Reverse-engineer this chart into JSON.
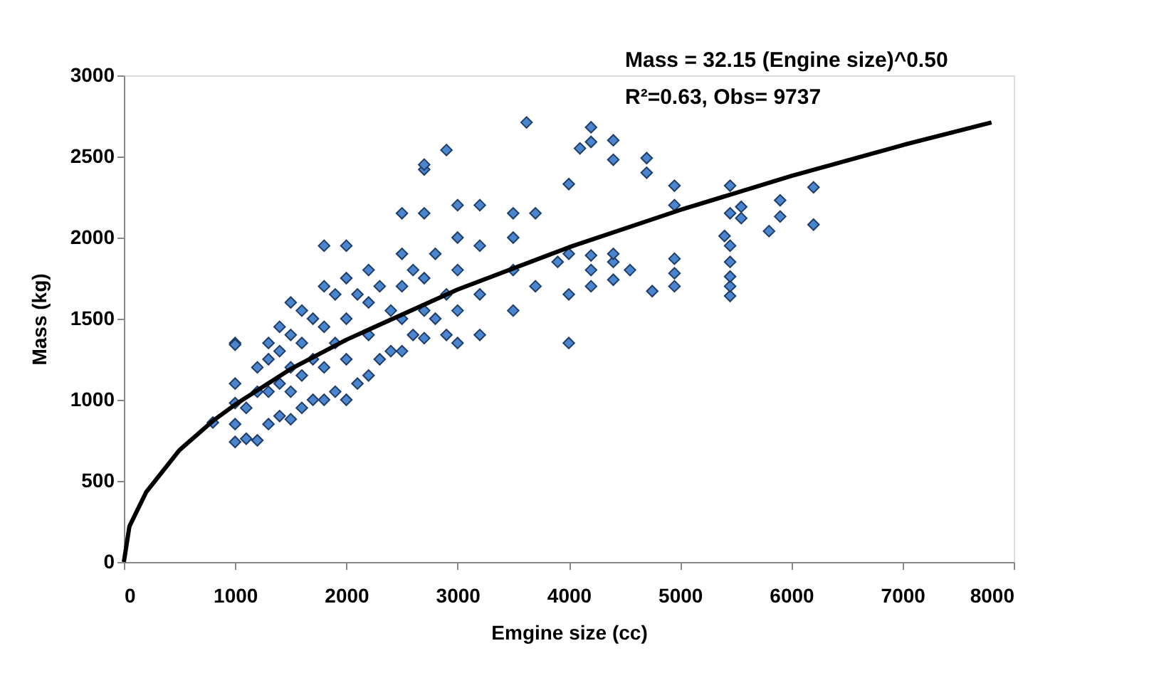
{
  "chart_data": {
    "type": "scatter",
    "xlabel": "Emgine size (cc)",
    "ylabel": "Mass (kg)",
    "annotations": [
      "Mass = 32.15 (Engine size)^0.50",
      "R²=0.63, Obs= 9737"
    ],
    "xlim": [
      0,
      8000
    ],
    "xticks": [
      0,
      1000,
      2000,
      3000,
      4000,
      5000,
      6000,
      7000,
      8000
    ],
    "ylim": [
      0,
      3000
    ],
    "yticks": [
      0,
      500,
      1000,
      1500,
      2000,
      2500,
      3000
    ],
    "grid": false,
    "series": [
      {
        "marker": "diamond",
        "color": "#4a86cf",
        "x": [
          800,
          1000,
          1000,
          1000,
          1000,
          1000,
          1000,
          1100,
          1100,
          1200,
          1200,
          1200,
          1300,
          1300,
          1300,
          1300,
          1400,
          1400,
          1400,
          1400,
          1500,
          1500,
          1500,
          1500,
          1500,
          1600,
          1600,
          1600,
          1600,
          1700,
          1700,
          1700,
          1800,
          1800,
          1800,
          1800,
          1800,
          1900,
          1900,
          1900,
          2000,
          2000,
          2000,
          2000,
          2000,
          2100,
          2100,
          2200,
          2200,
          2200,
          2200,
          2300,
          2300,
          2400,
          2400,
          2500,
          2500,
          2500,
          2500,
          2500,
          2600,
          2600,
          2700,
          2700,
          2700,
          2700,
          2700,
          2700,
          2800,
          2800,
          2900,
          2900,
          2900,
          3000,
          3000,
          3000,
          3000,
          3000,
          3200,
          3200,
          3200,
          3200,
          3500,
          3500,
          3500,
          3500,
          3620,
          3700,
          3700,
          3900,
          4000,
          4000,
          4000,
          4000,
          4100,
          4200,
          4200,
          4200,
          4200,
          4200,
          4400,
          4400,
          4400,
          4400,
          4400,
          4550,
          4700,
          4700,
          4750,
          4950,
          4950,
          4950,
          4950,
          4950,
          5400,
          5450,
          5450,
          5450,
          5450,
          5450,
          5450,
          5450,
          5550,
          5550,
          5800,
          5900,
          5900,
          6200,
          6200
        ],
        "values": [
          860,
          740,
          850,
          980,
          1100,
          1350,
          1340,
          760,
          950,
          750,
          1050,
          1200,
          850,
          1050,
          1250,
          1350,
          900,
          1100,
          1300,
          1450,
          880,
          1050,
          1200,
          1400,
          1600,
          950,
          1150,
          1350,
          1550,
          1000,
          1250,
          1500,
          1000,
          1200,
          1450,
          1700,
          1950,
          1050,
          1350,
          1650,
          1000,
          1250,
          1500,
          1750,
          1950,
          1100,
          1650,
          1150,
          1400,
          1600,
          1800,
          1250,
          1700,
          1300,
          1550,
          1300,
          1500,
          1700,
          1900,
          2150,
          1400,
          1800,
          1380,
          1550,
          1750,
          2150,
          2420,
          2450,
          1500,
          1900,
          1400,
          1650,
          2540,
          1350,
          1550,
          1800,
          2000,
          2200,
          1400,
          1650,
          1950,
          2200,
          1550,
          1800,
          2000,
          2150,
          2710,
          1700,
          2150,
          1850,
          1350,
          1650,
          1900,
          2330,
          2550,
          1700,
          1800,
          1890,
          2590,
          2680,
          1740,
          1850,
          1900,
          2480,
          2600,
          1800,
          2400,
          2490,
          1670,
          1700,
          1780,
          1870,
          2200,
          2320,
          2010,
          1640,
          1700,
          1760,
          1850,
          1950,
          2150,
          2320,
          2120,
          2190,
          2040,
          2130,
          2230,
          2080,
          2310
        ]
      },
      {
        "type": "line",
        "color": "#000000",
        "line_style": "solid",
        "x": [
          0,
          50,
          200,
          500,
          800,
          1000,
          1500,
          2000,
          3000,
          4000,
          5000,
          6000,
          7000,
          7800
        ],
        "values": [
          0,
          220,
          430,
          690,
          870,
          970,
          1190,
          1370,
          1680,
          1940,
          2170,
          2380,
          2570,
          2710
        ]
      }
    ]
  }
}
